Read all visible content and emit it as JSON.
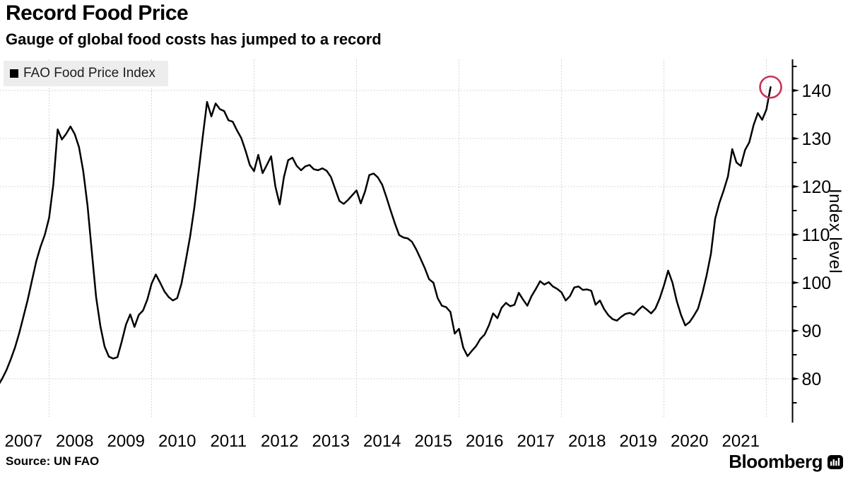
{
  "header": {
    "title": "Record Food Price",
    "subtitle": "Gauge of global food costs has jumped to a record"
  },
  "legend": {
    "label": "FAO Food Price Index",
    "swatch_color": "#000000"
  },
  "chart_data": {
    "type": "line",
    "title": "Record Food Price",
    "subtitle": "Gauge of global food costs has jumped to a record",
    "ylabel": "Index level",
    "xlabel": "",
    "grid": "dotted",
    "legend_position": "top-left",
    "axis_position": "right",
    "ylim": [
      74,
      146
    ],
    "y_ticks": [
      80,
      90,
      100,
      110,
      120,
      130,
      140
    ],
    "y_minor_ticks": [
      75,
      85,
      95,
      105,
      115,
      125,
      135,
      145
    ],
    "x_tick_labels": [
      "2007",
      "2008",
      "2009",
      "2010",
      "2011",
      "2012",
      "2013",
      "2014",
      "2015",
      "2016",
      "2017",
      "2018",
      "2019",
      "2020",
      "2021"
    ],
    "x_gridline_years": [
      2008,
      2010,
      2012,
      2014,
      2016,
      2018,
      2020,
      2022
    ],
    "series": [
      {
        "name": "FAO Food Price Index",
        "color": "#000000",
        "frequency": "monthly",
        "start": "2007-01",
        "end": "2022-02",
        "values": [
          78.5,
          80.0,
          81.8,
          84.0,
          86.5,
          89.5,
          93.0,
          96.5,
          100.5,
          104.5,
          107.5,
          110.0,
          113.5,
          120.5,
          131.9,
          129.8,
          131.0,
          132.5,
          130.9,
          128.2,
          123.2,
          116.0,
          106.5,
          97.0,
          91.0,
          86.7,
          84.6,
          84.2,
          84.5,
          87.7,
          91.3,
          93.4,
          90.8,
          93.3,
          94.2,
          96.5,
          99.8,
          101.7,
          100.0,
          98.2,
          97.0,
          96.3,
          96.8,
          99.8,
          104.5,
          109.5,
          115.5,
          123.0,
          130.5,
          137.6,
          134.6,
          137.3,
          136.1,
          135.7,
          133.8,
          133.5,
          131.7,
          130.1,
          127.5,
          124.5,
          123.2,
          126.6,
          122.8,
          124.5,
          126.3,
          120.0,
          116.3,
          122.0,
          125.5,
          126.0,
          124.3,
          123.4,
          124.2,
          124.5,
          123.6,
          123.4,
          123.8,
          123.3,
          122.0,
          119.5,
          117.0,
          116.4,
          117.2,
          118.2,
          119.2,
          116.5,
          119.0,
          122.4,
          122.7,
          121.9,
          120.4,
          117.8,
          115.0,
          112.3,
          109.9,
          109.4,
          109.2,
          108.5,
          106.9,
          105.0,
          103.0,
          100.7,
          100.0,
          96.8,
          95.2,
          94.9,
          93.9,
          89.4,
          90.4,
          86.5,
          84.7,
          85.8,
          86.8,
          88.3,
          89.2,
          91.1,
          93.6,
          92.6,
          94.8,
          95.8,
          95.1,
          95.4,
          97.9,
          96.5,
          95.2,
          97.2,
          98.7,
          100.3,
          99.6,
          100.1,
          99.2,
          98.7,
          98.0,
          96.3,
          97.2,
          99.0,
          99.2,
          98.5,
          98.6,
          98.3,
          95.4,
          96.3,
          94.5,
          93.2,
          92.4,
          92.1,
          92.9,
          93.5,
          93.7,
          93.3,
          94.3,
          95.1,
          94.4,
          93.6,
          94.6,
          96.7,
          99.4,
          102.5,
          100.0,
          96.2,
          93.3,
          91.1,
          91.8,
          93.1,
          94.6,
          97.8,
          101.5,
          106.0,
          113.3,
          116.6,
          119.2,
          122.1,
          127.8,
          125.0,
          124.3,
          127.6,
          129.2,
          132.8,
          135.3,
          133.9,
          136.0,
          140.7
        ]
      }
    ],
    "annotation": {
      "shape": "circle",
      "target": "last-point",
      "value": 140.7,
      "color": "#c73352"
    }
  },
  "colors": {
    "line": "#000000",
    "gridline": "#c7c7c7",
    "axis": "#000000",
    "legend_bg": "#ededed",
    "annotation": "#c73352"
  },
  "footer": {
    "source": "Source: UN FAO",
    "brand": "Bloomberg"
  }
}
